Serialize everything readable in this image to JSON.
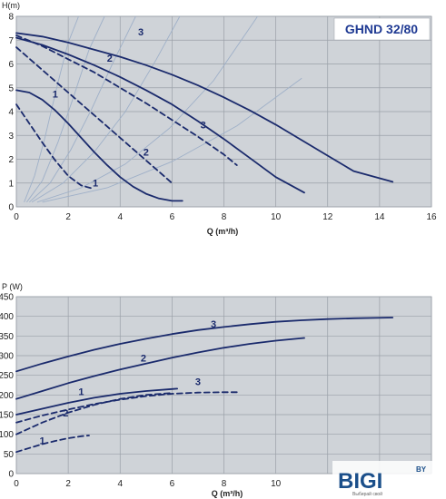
{
  "chart_data": [
    {
      "type": "line",
      "title": "GHND 32/80",
      "ylabel": "H(m)",
      "xlabel": "Q (m³/h)",
      "xlim": [
        0,
        16
      ],
      "ylim": [
        0,
        8
      ],
      "xticks": [
        0,
        2,
        4,
        6,
        8,
        10,
        12,
        14,
        16
      ],
      "yticks": [
        0,
        1,
        2,
        3,
        4,
        5,
        6,
        7,
        8
      ],
      "grid": true,
      "series": [
        {
          "name": "1",
          "style": "solid",
          "x": [
            0,
            0.5,
            1,
            1.5,
            2,
            2.5,
            3,
            3.5,
            4,
            4.5,
            5,
            5.5,
            6,
            6.4
          ],
          "y": [
            4.9,
            4.8,
            4.5,
            4.05,
            3.5,
            2.9,
            2.3,
            1.75,
            1.25,
            0.85,
            0.55,
            0.35,
            0.25,
            0.25
          ]
        },
        {
          "name": "1",
          "style": "dashed",
          "x": [
            0,
            0.5,
            1,
            1.5,
            2,
            2.5,
            3
          ],
          "y": [
            4.3,
            3.5,
            2.7,
            1.95,
            1.3,
            0.9,
            0.75
          ]
        },
        {
          "name": "2",
          "style": "solid",
          "x": [
            0,
            1,
            2,
            3,
            4,
            5,
            6,
            7,
            8,
            9,
            10,
            11.1
          ],
          "y": [
            7.1,
            6.8,
            6.4,
            5.95,
            5.45,
            4.9,
            4.3,
            3.6,
            2.85,
            2.05,
            1.25,
            0.6
          ]
        },
        {
          "name": "2",
          "style": "dashed",
          "x": [
            0,
            1,
            2,
            3,
            4,
            5,
            6
          ],
          "y": [
            6.7,
            5.75,
            4.8,
            3.85,
            2.9,
            1.95,
            1.0
          ]
        },
        {
          "name": "3",
          "style": "solid",
          "x": [
            0,
            1,
            2,
            3,
            4,
            5,
            6,
            7,
            8,
            9,
            10,
            11,
            12,
            13,
            14.5
          ],
          "y": [
            7.3,
            7.15,
            6.9,
            6.6,
            6.3,
            5.95,
            5.55,
            5.1,
            4.6,
            4.05,
            3.45,
            2.8,
            2.15,
            1.5,
            1.05
          ]
        },
        {
          "name": "3",
          "style": "dashed",
          "x": [
            0,
            1,
            2,
            3,
            4,
            5,
            6,
            7,
            8,
            8.5
          ],
          "y": [
            7.2,
            6.75,
            6.2,
            5.65,
            5.0,
            4.35,
            3.65,
            2.95,
            2.2,
            1.75
          ]
        }
      ],
      "system_curves": [
        {
          "x": [
            0.3,
            0.7,
            1.1,
            1.6,
            2.0,
            2.4
          ],
          "y": [
            0.2,
            1.3,
            2.9,
            5.2,
            6.9,
            8.0
          ]
        },
        {
          "x": [
            0.4,
            1.0,
            1.6,
            2.2,
            2.8,
            3.4
          ],
          "y": [
            0.2,
            1.1,
            2.7,
            4.6,
            6.6,
            8.0
          ]
        },
        {
          "x": [
            0.5,
            1.3,
            2.1,
            2.9,
            3.7,
            4.6
          ],
          "y": [
            0.2,
            1.0,
            2.4,
            4.1,
            6.0,
            8.0
          ]
        },
        {
          "x": [
            0.6,
            1.8,
            3.0,
            4.2,
            5.4,
            6.3
          ],
          "y": [
            0.2,
            1.0,
            2.3,
            4.0,
            6.2,
            8.0
          ]
        },
        {
          "x": [
            0.8,
            2.5,
            4.2,
            5.9,
            7.6,
            9.3
          ],
          "y": [
            0.2,
            0.8,
            1.8,
            3.3,
            5.3,
            8.0
          ]
        },
        {
          "x": [
            1.0,
            3.5,
            6.0,
            8.5,
            11.0
          ],
          "y": [
            0.2,
            0.8,
            1.9,
            3.4,
            5.4
          ]
        }
      ],
      "labels": [
        {
          "text": "1",
          "x": 1.5,
          "y": 4.6
        },
        {
          "text": "1",
          "x": 3.05,
          "y": 0.85
        },
        {
          "text": "2",
          "x": 3.6,
          "y": 6.1
        },
        {
          "text": "2",
          "x": 5.0,
          "y": 2.15
        },
        {
          "text": "3",
          "x": 4.8,
          "y": 7.2
        },
        {
          "text": "3",
          "x": 7.2,
          "y": 3.3
        }
      ]
    },
    {
      "type": "line",
      "ylabel": "P (W)",
      "xlabel": "Q (m³/h)",
      "xlim": [
        0,
        16
      ],
      "ylim": [
        0,
        450
      ],
      "yaxis_min": 0,
      "xticks": [
        0,
        2,
        4,
        6,
        8,
        10
      ],
      "yticks": [
        0,
        50,
        100,
        150,
        200,
        250,
        300,
        350,
        400,
        450
      ],
      "grid": true,
      "series": [
        {
          "name": "1",
          "style": "solid",
          "x": [
            0,
            1,
            2,
            3,
            4,
            5,
            6,
            6.2
          ],
          "y": [
            150,
            165,
            180,
            193,
            203,
            210,
            215,
            216
          ]
        },
        {
          "name": "1",
          "style": "dashed",
          "x": [
            0,
            0.5,
            1,
            1.5,
            2,
            2.5,
            2.8
          ],
          "y": [
            55,
            65,
            75,
            83,
            90,
            95,
            97
          ]
        },
        {
          "name": "2",
          "style": "solid",
          "x": [
            0,
            1,
            2,
            3,
            4,
            5,
            6,
            7,
            8,
            9,
            10,
            11.1
          ],
          "y": [
            190,
            210,
            230,
            248,
            265,
            280,
            295,
            308,
            320,
            330,
            338,
            345
          ]
        },
        {
          "name": "2",
          "style": "dashed",
          "x": [
            0,
            1,
            2,
            3,
            4,
            5,
            6
          ],
          "y": [
            100,
            130,
            155,
            175,
            190,
            200,
            205
          ]
        },
        {
          "name": "3",
          "style": "solid",
          "x": [
            0,
            1,
            2,
            3,
            4,
            5,
            6,
            7,
            8,
            9,
            10,
            11,
            12,
            13,
            14.5
          ],
          "y": [
            260,
            280,
            298,
            315,
            330,
            343,
            355,
            365,
            373,
            380,
            386,
            390,
            393,
            395,
            397
          ]
        },
        {
          "name": "3",
          "style": "dashed",
          "x": [
            0,
            1,
            2,
            3,
            4,
            5,
            6,
            7,
            8,
            8.5
          ],
          "y": [
            130,
            148,
            163,
            177,
            188,
            197,
            203,
            206,
            207,
            207
          ]
        }
      ],
      "labels": [
        {
          "text": "1",
          "x": 2.5,
          "y": 200
        },
        {
          "text": "1",
          "x": 1.0,
          "y": 75
        },
        {
          "text": "2",
          "x": 4.9,
          "y": 285
        },
        {
          "text": "2",
          "x": 1.9,
          "y": 145
        },
        {
          "text": "3",
          "x": 7.6,
          "y": 372
        },
        {
          "text": "3",
          "x": 7.0,
          "y": 225
        }
      ]
    }
  ],
  "watermark": {
    "brand": "BIGI",
    "suffix": "BY",
    "tagline": "Выбирай свой",
    "colors": {
      "text": "#1b4f8a",
      "accent": "#e8a21a"
    }
  },
  "colors": {
    "plot_bg": "#cfd3d8",
    "grid": "#9aa0a8",
    "curve": "#1a2a6c",
    "system_curve": "#9fb0c8",
    "title": "#1f3a93"
  }
}
